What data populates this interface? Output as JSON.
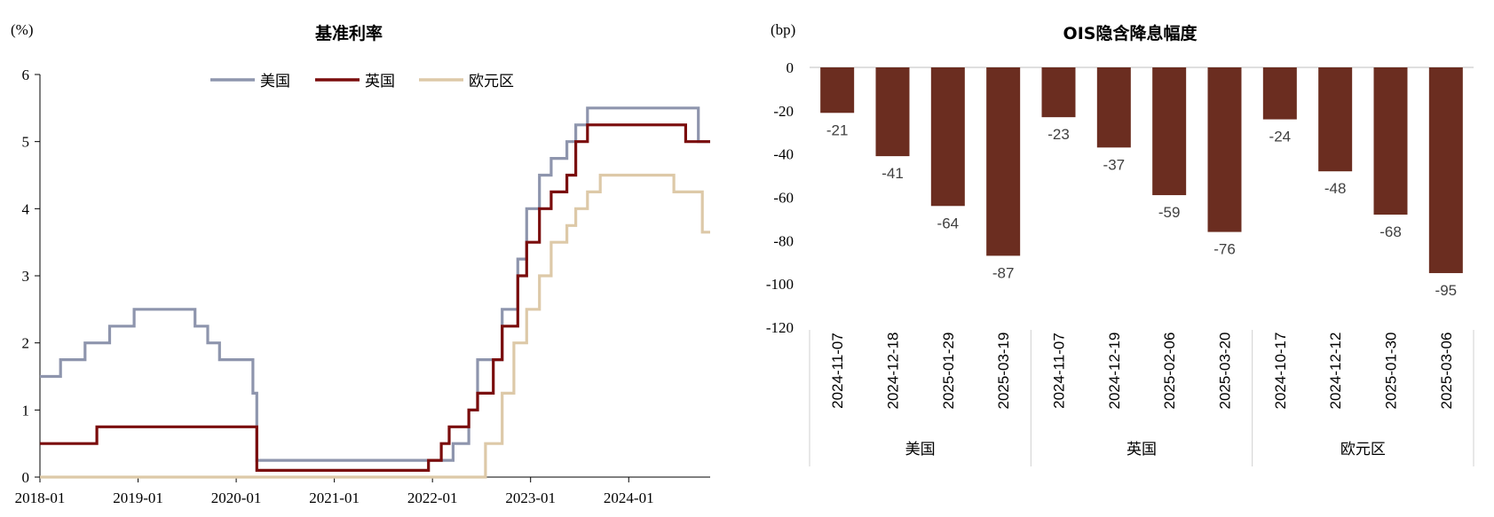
{
  "chart_data": [
    {
      "type": "line",
      "title": "基准利率",
      "unit_label": "(%)",
      "ylim": [
        0,
        6
      ],
      "yticks": [
        0,
        1,
        2,
        3,
        4,
        5,
        6
      ],
      "x_range": [
        2018.0,
        2024.83
      ],
      "xtick_labels": [
        "2018-01",
        "2019-01",
        "2020-01",
        "2021-01",
        "2022-01",
        "2023-01",
        "2024-01"
      ],
      "legend": [
        "美国",
        "英国",
        "欧元区"
      ],
      "series": [
        {
          "name": "美国",
          "color": "#8e95ad",
          "steps": [
            [
              2018.0,
              1.5
            ],
            [
              2018.21,
              1.75
            ],
            [
              2018.46,
              2.0
            ],
            [
              2018.71,
              2.25
            ],
            [
              2018.96,
              2.5
            ],
            [
              2019.58,
              2.25
            ],
            [
              2019.71,
              2.0
            ],
            [
              2019.83,
              1.75
            ],
            [
              2020.17,
              1.25
            ],
            [
              2020.21,
              0.25
            ],
            [
              2022.21,
              0.5
            ],
            [
              2022.37,
              1.0
            ],
            [
              2022.46,
              1.75
            ],
            [
              2022.71,
              2.5
            ],
            [
              2022.87,
              3.25
            ],
            [
              2022.96,
              4.0
            ],
            [
              2023.09,
              4.5
            ],
            [
              2023.21,
              4.75
            ],
            [
              2023.37,
              5.0
            ],
            [
              2023.46,
              5.25
            ],
            [
              2023.58,
              5.5
            ],
            [
              2024.71,
              5.0
            ],
            [
              2024.83,
              5.0
            ]
          ]
        },
        {
          "name": "英国",
          "color": "#7a0c0c",
          "steps": [
            [
              2018.0,
              0.5
            ],
            [
              2018.58,
              0.75
            ],
            [
              2020.21,
              0.1
            ],
            [
              2021.96,
              0.25
            ],
            [
              2022.09,
              0.5
            ],
            [
              2022.17,
              0.75
            ],
            [
              2022.37,
              1.0
            ],
            [
              2022.46,
              1.25
            ],
            [
              2022.62,
              1.75
            ],
            [
              2022.71,
              2.25
            ],
            [
              2022.87,
              3.0
            ],
            [
              2022.96,
              3.5
            ],
            [
              2023.09,
              4.0
            ],
            [
              2023.21,
              4.25
            ],
            [
              2023.37,
              4.5
            ],
            [
              2023.46,
              5.0
            ],
            [
              2023.58,
              5.25
            ],
            [
              2024.58,
              5.0
            ],
            [
              2024.83,
              5.0
            ]
          ]
        },
        {
          "name": "欧元区",
          "color": "#ddc9a8",
          "steps": [
            [
              2018.0,
              0.0
            ],
            [
              2022.54,
              0.5
            ],
            [
              2022.71,
              1.25
            ],
            [
              2022.83,
              2.0
            ],
            [
              2022.96,
              2.5
            ],
            [
              2023.09,
              3.0
            ],
            [
              2023.21,
              3.5
            ],
            [
              2023.37,
              3.75
            ],
            [
              2023.46,
              4.0
            ],
            [
              2023.58,
              4.25
            ],
            [
              2023.71,
              4.5
            ],
            [
              2024.46,
              4.25
            ],
            [
              2024.75,
              3.65
            ],
            [
              2024.83,
              3.65
            ]
          ]
        }
      ]
    },
    {
      "type": "bar",
      "title": "OIS隐含降息幅度",
      "unit_label": "(bp)",
      "ylim": [
        -120,
        0
      ],
      "yticks": [
        0,
        -20,
        -40,
        -60,
        -80,
        -100,
        -120
      ],
      "bar_color": "#6b2d20",
      "categories": [
        "2024-11-07",
        "2024-12-18",
        "2025-01-29",
        "2025-03-19",
        "2024-11-07",
        "2024-12-19",
        "2025-02-06",
        "2025-03-20",
        "2024-10-17",
        "2024-12-12",
        "2025-01-30",
        "2025-03-06"
      ],
      "values": [
        -21,
        -41,
        -64,
        -87,
        -23,
        -37,
        -59,
        -76,
        -24,
        -48,
        -68,
        -95
      ],
      "groups": [
        {
          "name": "美国",
          "count": 4
        },
        {
          "name": "英国",
          "count": 4
        },
        {
          "name": "欧元区",
          "count": 4
        }
      ]
    }
  ]
}
